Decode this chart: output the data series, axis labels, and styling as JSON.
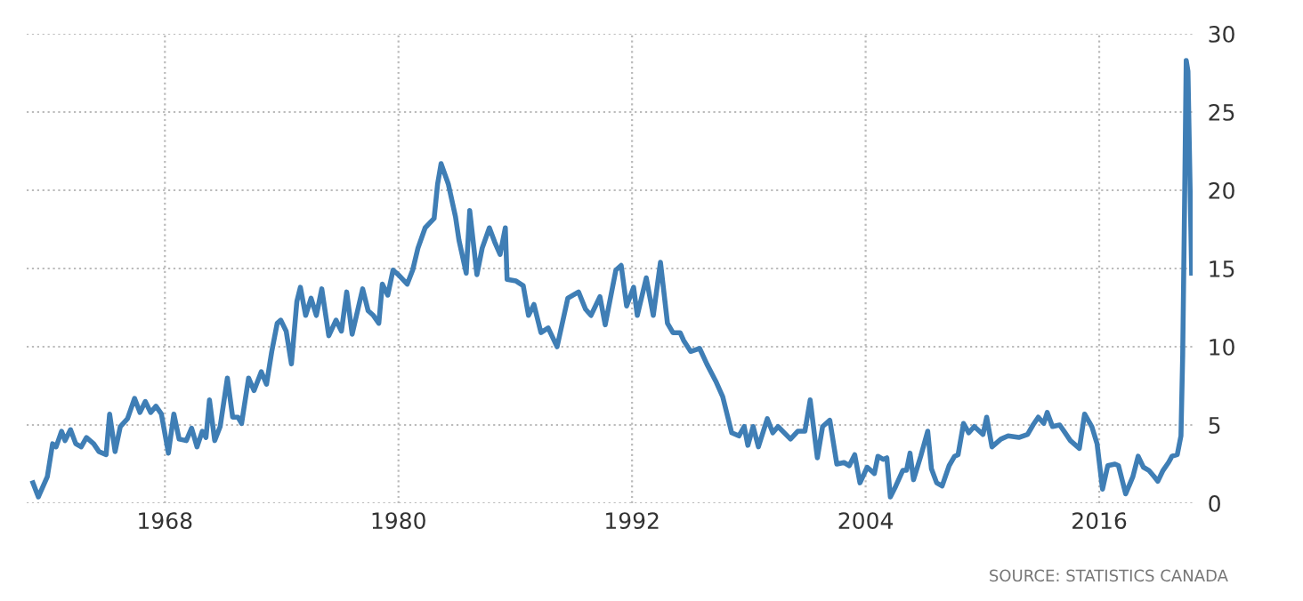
{
  "chart_data": {
    "type": "line",
    "xlim": [
      1960.9,
      2020.8
    ],
    "xticks": [
      1968,
      1980,
      1992,
      2004,
      2016
    ],
    "ylim": [
      0,
      30
    ],
    "yticks": [
      0,
      5,
      10,
      15,
      20,
      25,
      30
    ],
    "grid": true,
    "legend": false,
    "marker": "none",
    "line_style": "solid",
    "annotations": [
      "SOURCE: STATISTICS CANADA"
    ],
    "series": [
      {
        "color": "#3f7eb5",
        "x": [
          1961.22,
          1961.5,
          1961.96,
          1962.23,
          1962.41,
          1962.69,
          1962.87,
          1963.15,
          1963.42,
          1963.7,
          1963.97,
          1964.34,
          1964.61,
          1964.98,
          1965.16,
          1965.44,
          1965.71,
          1966.08,
          1966.44,
          1966.72,
          1966.99,
          1967.27,
          1967.54,
          1967.82,
          1968.18,
          1968.46,
          1968.73,
          1969.1,
          1969.37,
          1969.65,
          1969.92,
          1970.11,
          1970.29,
          1970.56,
          1970.84,
          1971.21,
          1971.48,
          1971.75,
          1971.94,
          1972.3,
          1972.58,
          1972.95,
          1973.22,
          1973.49,
          1973.77,
          1973.95,
          1974.23,
          1974.5,
          1974.78,
          1974.96,
          1975.23,
          1975.51,
          1975.78,
          1976.06,
          1976.42,
          1976.79,
          1977.07,
          1977.34,
          1977.62,
          1978.16,
          1978.44,
          1978.71,
          1978.99,
          1979.17,
          1979.45,
          1979.72,
          1980.0,
          1980.45,
          1980.73,
          1981.0,
          1981.37,
          1981.83,
          1982.01,
          1982.19,
          1982.56,
          1982.93,
          1983.11,
          1983.48,
          1983.66,
          1984.03,
          1984.3,
          1984.67,
          1984.94,
          1985.22,
          1985.49,
          1985.58,
          1986.04,
          1986.41,
          1986.68,
          1986.96,
          1987.32,
          1987.69,
          1988.15,
          1988.7,
          1989.25,
          1989.61,
          1989.89,
          1990.35,
          1990.62,
          1991.17,
          1991.44,
          1991.72,
          1992.08,
          1992.27,
          1992.73,
          1993.09,
          1993.46,
          1993.82,
          1994.1,
          1994.47,
          1994.65,
          1995.01,
          1995.47,
          1995.84,
          1996.3,
          1996.66,
          1997.12,
          1997.49,
          1997.76,
          1997.95,
          1998.22,
          1998.49,
          1998.95,
          1999.23,
          1999.5,
          2000.14,
          2000.51,
          2000.88,
          2001.15,
          2001.52,
          2001.79,
          2002.16,
          2002.52,
          2002.89,
          2003.16,
          2003.44,
          2003.71,
          2004.08,
          2004.45,
          2004.63,
          2004.9,
          2005.09,
          2005.27,
          2005.55,
          2005.91,
          2006.1,
          2006.28,
          2006.46,
          2006.83,
          2007.19,
          2007.38,
          2007.65,
          2007.93,
          2008.29,
          2008.57,
          2008.75,
          2009.03,
          2009.3,
          2009.58,
          2010.03,
          2010.22,
          2010.49,
          2010.95,
          2011.32,
          2011.87,
          2012.32,
          2012.6,
          2012.87,
          2013.15,
          2013.33,
          2013.6,
          2013.97,
          2014.25,
          2014.52,
          2014.98,
          2015.25,
          2015.62,
          2015.89,
          2016.17,
          2016.44,
          2016.81,
          2016.99,
          2017.36,
          2017.73,
          2018.0,
          2018.27,
          2018.55,
          2018.82,
          2019.01,
          2019.28,
          2019.56,
          2019.74,
          2020.01,
          2020.2,
          2020.29,
          2020.38,
          2020.47,
          2020.56,
          2020.75
        ],
        "values": [
          1.3,
          0.4,
          1.7,
          3.8,
          3.6,
          4.6,
          4.0,
          4.7,
          3.8,
          3.6,
          4.2,
          3.8,
          3.3,
          3.1,
          5.7,
          3.3,
          4.9,
          5.4,
          6.7,
          5.8,
          6.5,
          5.8,
          6.2,
          5.7,
          3.2,
          5.7,
          4.1,
          4.0,
          4.8,
          3.6,
          4.6,
          4.2,
          6.6,
          4.0,
          4.9,
          8.0,
          5.5,
          5.5,
          5.1,
          8.0,
          7.2,
          8.4,
          7.6,
          9.7,
          11.5,
          11.7,
          11.0,
          8.9,
          12.9,
          13.8,
          12.0,
          13.1,
          12.0,
          13.7,
          10.7,
          11.7,
          11.0,
          13.5,
          10.8,
          13.7,
          12.3,
          12.0,
          11.5,
          14.0,
          13.3,
          14.9,
          14.6,
          14.0,
          14.9,
          16.3,
          17.6,
          18.2,
          20.4,
          21.7,
          20.4,
          18.3,
          16.8,
          14.7,
          18.7,
          14.6,
          16.3,
          17.6,
          16.7,
          15.9,
          17.6,
          14.3,
          14.2,
          13.9,
          12.0,
          12.7,
          10.9,
          11.2,
          10.0,
          13.1,
          13.5,
          12.4,
          12.0,
          13.2,
          11.4,
          14.9,
          15.2,
          12.6,
          13.8,
          12.0,
          14.4,
          12.0,
          15.4,
          11.5,
          10.9,
          10.9,
          10.4,
          9.7,
          9.9,
          8.9,
          7.8,
          6.8,
          4.5,
          4.3,
          4.9,
          3.7,
          4.9,
          3.6,
          5.4,
          4.5,
          4.9,
          4.1,
          4.6,
          4.6,
          6.6,
          2.9,
          4.9,
          5.3,
          2.5,
          2.6,
          2.4,
          3.1,
          1.3,
          2.3,
          1.9,
          3.0,
          2.8,
          2.9,
          0.4,
          1.1,
          2.1,
          2.1,
          3.2,
          1.5,
          3.0,
          4.6,
          2.2,
          1.3,
          1.1,
          2.4,
          3.0,
          3.1,
          5.1,
          4.5,
          4.9,
          4.4,
          5.5,
          3.6,
          4.1,
          4.3,
          4.2,
          4.4,
          5.0,
          5.5,
          5.1,
          5.8,
          4.9,
          5.0,
          4.5,
          4.0,
          3.5,
          5.7,
          4.9,
          3.8,
          0.9,
          2.4,
          2.5,
          2.4,
          0.6,
          1.7,
          3.0,
          2.3,
          2.1,
          1.7,
          1.4,
          2.1,
          2.6,
          3.0,
          3.1,
          4.3,
          9.5,
          18.5,
          28.3,
          27.6,
          14.7
        ]
      }
    ]
  }
}
